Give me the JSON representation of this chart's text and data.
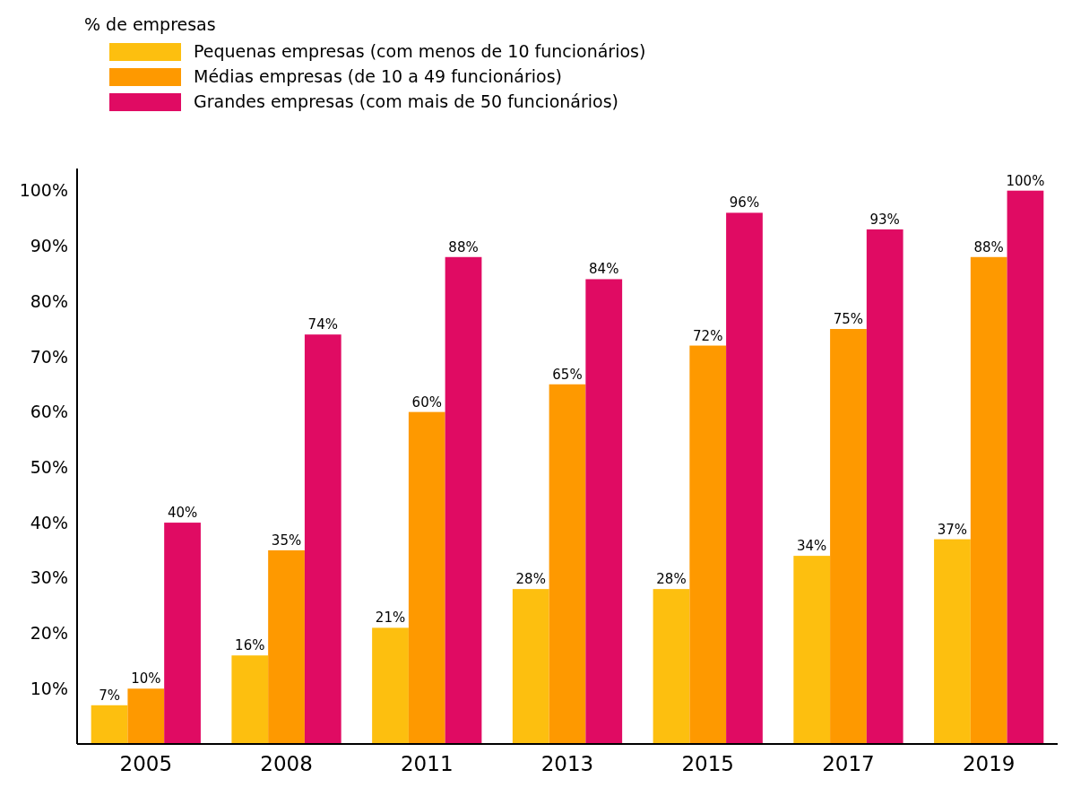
{
  "chart_data": {
    "type": "bar",
    "legend_title": "% de empresas",
    "categories": [
      "2005",
      "2008",
      "2011",
      "2013",
      "2015",
      "2017",
      "2019"
    ],
    "series": [
      {
        "name": "Pequenas empresas (com menos de 10 funcionários)",
        "color": "#fdbf0f",
        "values": [
          7,
          16,
          21,
          28,
          28,
          34,
          37
        ],
        "value_labels": [
          "7%",
          "16%",
          "21%",
          "28%",
          "28%",
          "34%",
          "37%"
        ]
      },
      {
        "name": "Médias empresas (de 10 a 49 funcionários)",
        "color": "#fe9900",
        "values": [
          10,
          35,
          60,
          65,
          72,
          75,
          88
        ],
        "value_labels": [
          "10%",
          "35%",
          "60%",
          "65%",
          "72%",
          "75%",
          "88%"
        ]
      },
      {
        "name": "Grandes empresas (com mais de 50 funcionários)",
        "color": "#e00b63",
        "values": [
          40,
          74,
          88,
          84,
          96,
          93,
          100
        ],
        "value_labels": [
          "40%",
          "74%",
          "88%",
          "84%",
          "96%",
          "93%",
          "100%"
        ]
      }
    ],
    "ylim": [
      0,
      104
    ],
    "yticks": [
      {
        "value": 10,
        "label": "10%"
      },
      {
        "value": 20,
        "label": "20%"
      },
      {
        "value": 30,
        "label": "30%"
      },
      {
        "value": 40,
        "label": "40%"
      },
      {
        "value": 50,
        "label": "50%"
      },
      {
        "value": 60,
        "label": "60%"
      },
      {
        "value": 70,
        "label": "70%"
      },
      {
        "value": 80,
        "label": "80%"
      },
      {
        "value": 90,
        "label": "90%"
      },
      {
        "value": 100,
        "label": "100%"
      }
    ],
    "legend": "top left",
    "grid": false
  }
}
